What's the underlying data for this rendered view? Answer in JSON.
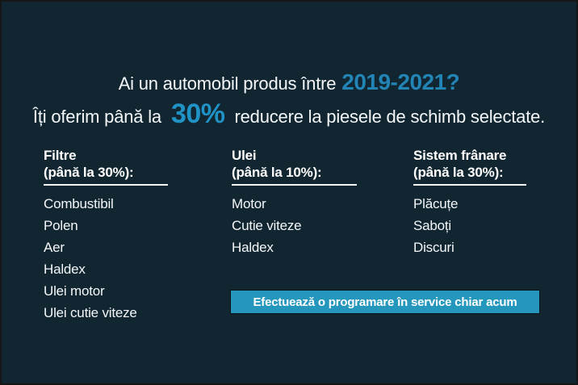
{
  "banner": {
    "headline": {
      "line1_prefix": "Ai un automobil produs între",
      "line1_highlight": "2019-2021?",
      "line2_prefix": "Îți oferim până la",
      "line2_highlight": "30%",
      "line2_suffix": "reducere la piesele de schimb selectate."
    },
    "columns": [
      {
        "title": "Filtre",
        "subtitle": "(până la 30%):",
        "items": [
          "Combustibil",
          "Polen",
          "Aer",
          "Haldex",
          "Ulei motor",
          "Ulei cutie viteze"
        ]
      },
      {
        "title": "Ulei",
        "subtitle": "(până la 10%):",
        "items": [
          "Motor",
          "Cutie viteze",
          "Haldex"
        ]
      },
      {
        "title": "Sistem frânare",
        "subtitle": "(până la 30%):",
        "items": [
          "Plăcuțe",
          "Saboți",
          "Discuri"
        ]
      }
    ],
    "cta": {
      "label": "Efectuează o programare în service chiar acum"
    },
    "colors": {
      "background": "#112631",
      "accent_year": "#2285b5",
      "accent_discount": "#2093c6",
      "button_background": "#2596bc",
      "text": "#f4f7f9"
    }
  }
}
